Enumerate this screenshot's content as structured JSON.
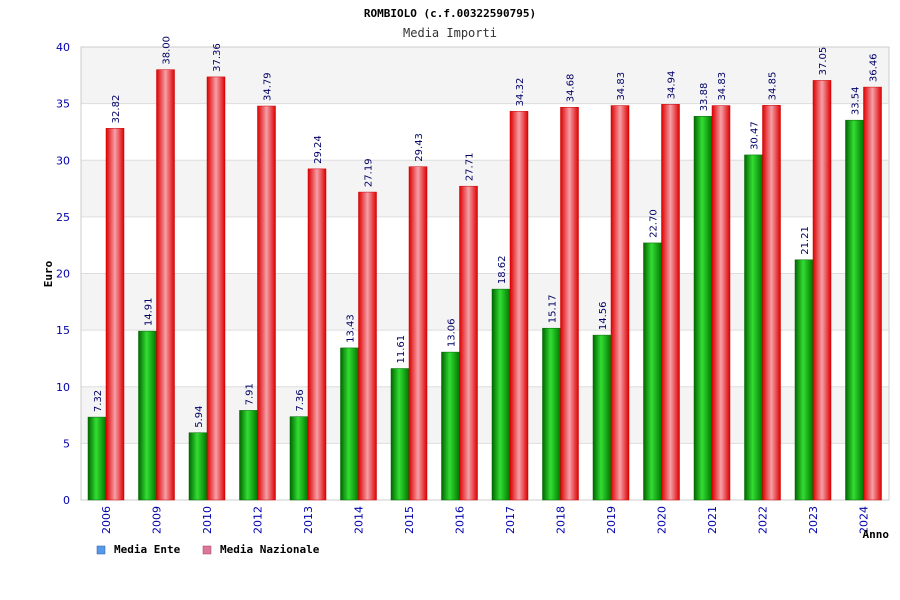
{
  "chart_data": {
    "type": "bar",
    "title": "ROMBIOLO (c.f.00322590795)",
    "subtitle": "Media Importi",
    "xlabel": "Anno",
    "ylabel": "Euro",
    "ylim": [
      0,
      40
    ],
    "yticks": [
      "0",
      "5",
      "10",
      "15",
      "20",
      "25",
      "30",
      "35",
      "40"
    ],
    "categories": [
      "2006",
      "2009",
      "2010",
      "2012",
      "2013",
      "2014",
      "2015",
      "2016",
      "2017",
      "2018",
      "2019",
      "2020",
      "2021",
      "2022",
      "2023",
      "2024"
    ],
    "series": [
      {
        "name": "Media Ente",
        "color": "#00aa00",
        "values": [
          7.32,
          14.91,
          5.94,
          7.91,
          7.36,
          13.43,
          11.61,
          13.06,
          18.62,
          15.17,
          14.56,
          22.7,
          33.88,
          30.47,
          21.21,
          33.54
        ],
        "labels": [
          "7.32",
          "14.91",
          "5.94",
          "7.91",
          "7.36",
          "13.43",
          "11.61",
          "13.06",
          "18.62",
          "15.17",
          "14.56",
          "22.70",
          "33.88",
          "30.47",
          "21.21",
          "33.54"
        ]
      },
      {
        "name": "Media Nazionale",
        "color": "#ee1111",
        "values": [
          32.82,
          38.0,
          37.36,
          34.79,
          29.24,
          27.19,
          29.43,
          27.71,
          34.32,
          34.68,
          34.83,
          34.94,
          34.83,
          34.85,
          37.05,
          36.46
        ],
        "labels": [
          "32.82",
          "38.00",
          "37.36",
          "34.79",
          "29.24",
          "27.19",
          "29.43",
          "27.71",
          "34.32",
          "34.68",
          "34.83",
          "34.94",
          "34.83",
          "34.85",
          "37.05",
          "36.46"
        ]
      }
    ],
    "legend": {
      "placement": "bottom-left",
      "items": [
        {
          "label": "Media Ente",
          "swatch_color": "#5599ee"
        },
        {
          "label": "Media Nazionale",
          "swatch_color": "#dd7799"
        }
      ]
    },
    "grid": true
  }
}
